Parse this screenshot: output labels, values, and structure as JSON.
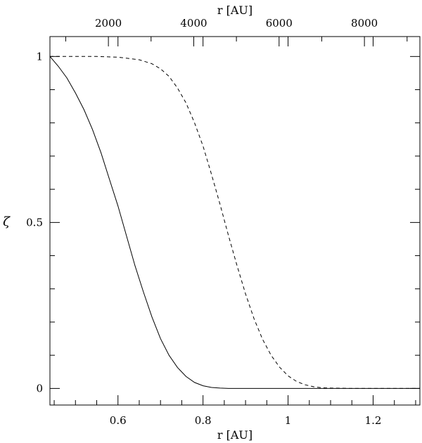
{
  "chart_data": {
    "type": "line",
    "xlabel_bottom": "r [AU]",
    "xlabel_top": "r [AU]",
    "ylabel": "ζ",
    "xlim": [
      0.44,
      1.31
    ],
    "ylim": [
      -0.05,
      1.06
    ],
    "xlim_top": [
      630,
      9300
    ],
    "x_ticks": [
      0.6,
      0.8,
      1.0,
      1.2
    ],
    "x_tick_labels": [
      "0.6",
      "0.8",
      "1",
      "1.2"
    ],
    "x_top_ticks": [
      2000,
      4000,
      6000,
      8000
    ],
    "x_top_tick_labels": [
      "2000",
      "4000",
      "6000",
      "8000"
    ],
    "y_ticks": [
      0,
      0.5,
      1
    ],
    "y_tick_labels": [
      "0",
      "0.5",
      "1"
    ],
    "grid": false,
    "series": [
      {
        "style": "solid",
        "color": "#000000",
        "x": [
          0.44,
          0.46,
          0.48,
          0.5,
          0.52,
          0.54,
          0.56,
          0.58,
          0.6,
          0.62,
          0.64,
          0.66,
          0.68,
          0.7,
          0.72,
          0.74,
          0.76,
          0.78,
          0.8,
          0.82,
          0.84,
          0.86,
          0.88,
          0.9,
          0.95,
          1.0,
          1.1,
          1.2,
          1.31
        ],
        "y": [
          1.0,
          0.97,
          0.935,
          0.89,
          0.84,
          0.78,
          0.71,
          0.63,
          0.55,
          0.46,
          0.37,
          0.29,
          0.215,
          0.15,
          0.1,
          0.063,
          0.036,
          0.018,
          0.008,
          0.003,
          0.001,
          0.0,
          0.0,
          0.0,
          0.0,
          0.0,
          0.0,
          0.0,
          0.0
        ]
      },
      {
        "style": "dashed",
        "color": "#000000",
        "x": [
          0.44,
          0.5,
          0.55,
          0.6,
          0.65,
          0.68,
          0.7,
          0.72,
          0.74,
          0.76,
          0.78,
          0.8,
          0.82,
          0.84,
          0.86,
          0.88,
          0.9,
          0.92,
          0.94,
          0.96,
          0.98,
          1.0,
          1.02,
          1.04,
          1.06,
          1.08,
          1.1,
          1.15,
          1.2,
          1.31
        ],
        "y": [
          1.0,
          1.0,
          1.0,
          0.998,
          0.99,
          0.978,
          0.963,
          0.94,
          0.905,
          0.86,
          0.8,
          0.73,
          0.645,
          0.555,
          0.46,
          0.37,
          0.285,
          0.21,
          0.148,
          0.1,
          0.064,
          0.038,
          0.021,
          0.011,
          0.005,
          0.002,
          0.001,
          0.0,
          0.0,
          0.0
        ]
      }
    ]
  }
}
